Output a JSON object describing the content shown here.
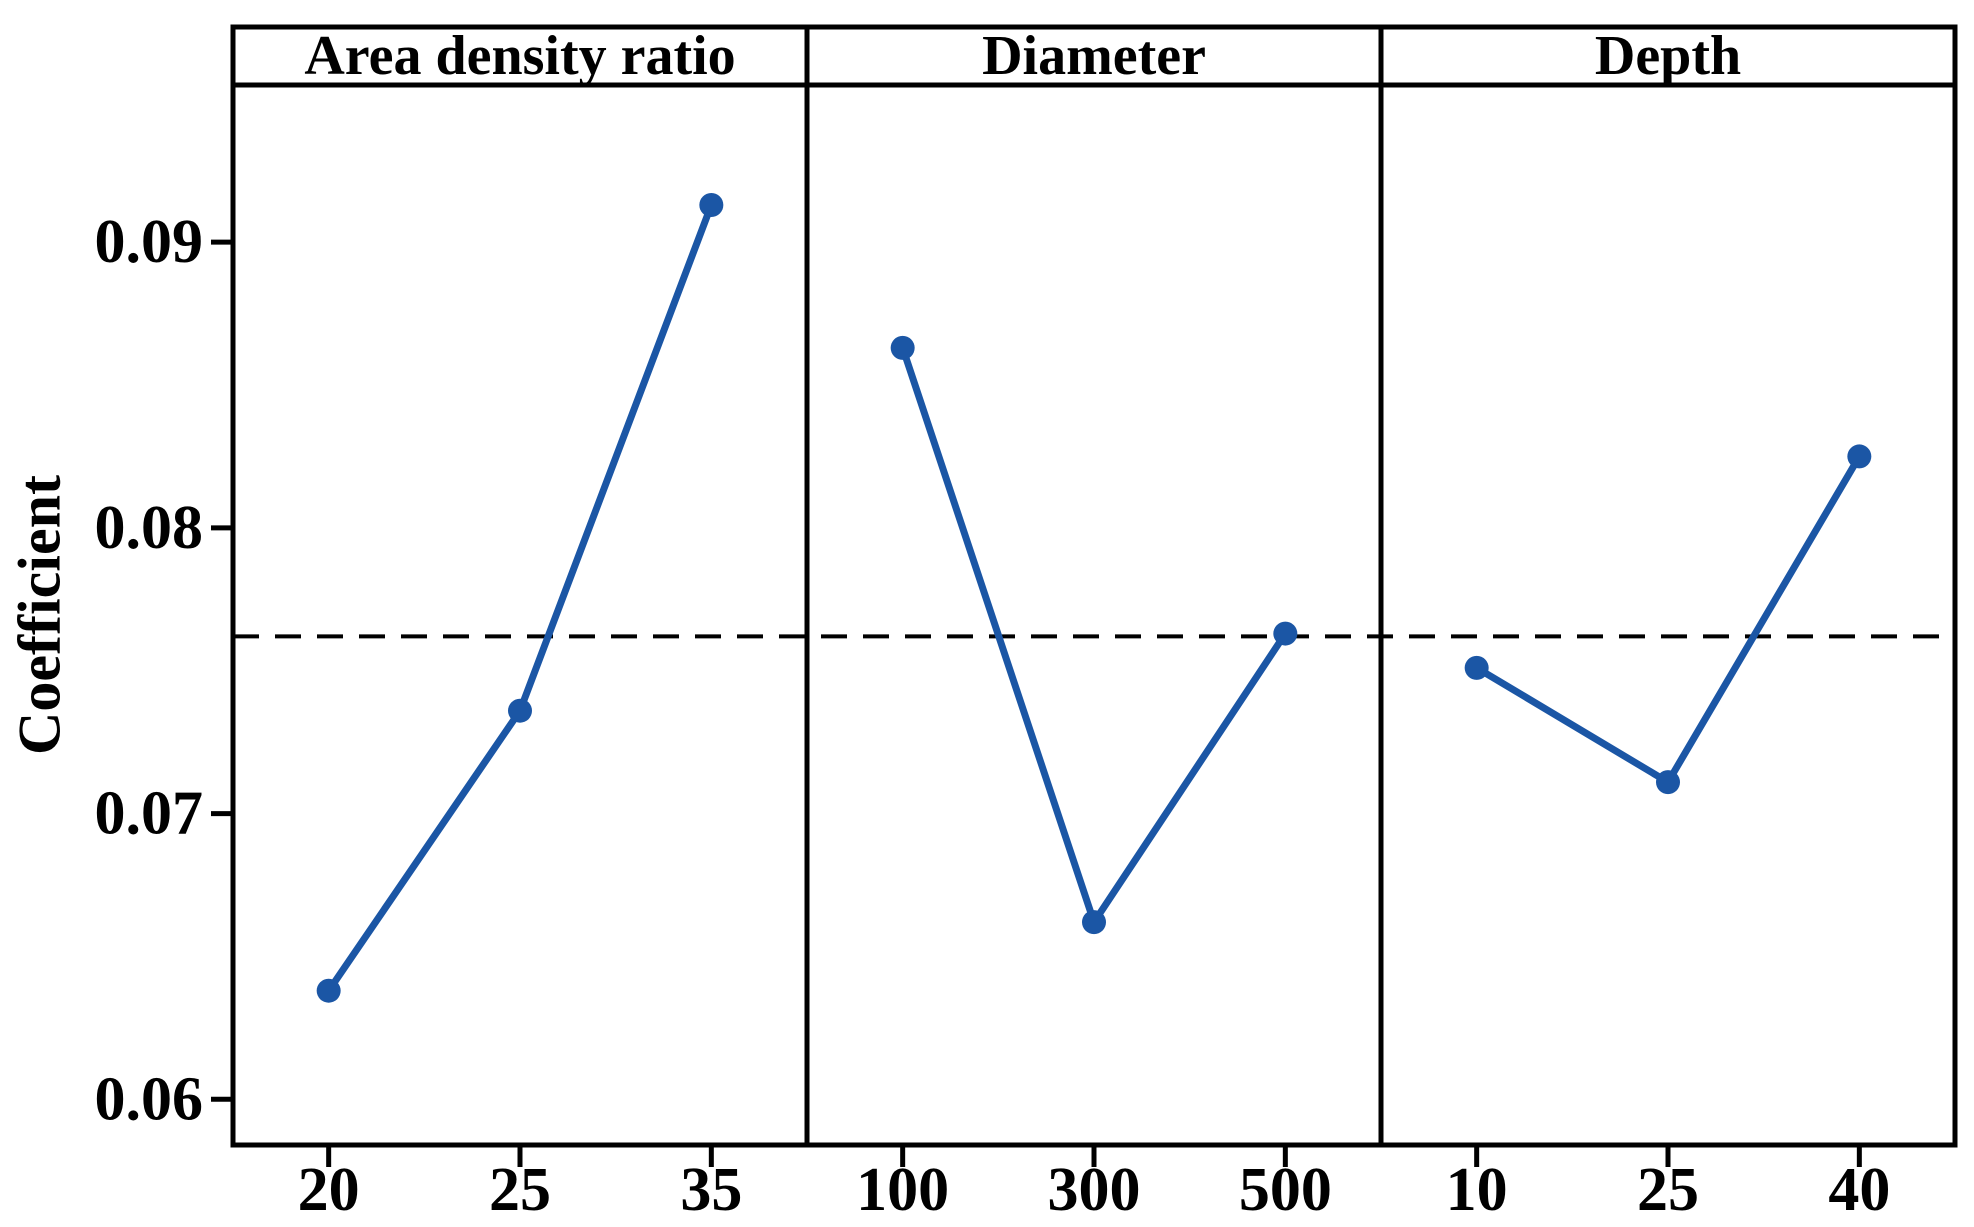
{
  "chart_data": {
    "type": "line",
    "subtype": "main-effects-plot",
    "ylabel": "Coefficient",
    "ylim": [
      0.0584,
      0.0955
    ],
    "yticks": [
      0.06,
      0.07,
      0.08,
      0.09
    ],
    "ytick_labels": [
      "0.06",
      "0.07",
      "0.08",
      "0.09"
    ],
    "reference_line": 0.0762,
    "grid": false,
    "legend": null,
    "panels": [
      {
        "label": "Area density ratio",
        "categories": [
          "20",
          "25",
          "35"
        ],
        "values": [
          0.0638,
          0.0736,
          0.0913
        ]
      },
      {
        "label": "Diameter",
        "categories": [
          "100",
          "300",
          "500"
        ],
        "values": [
          0.0863,
          0.0662,
          0.0763
        ]
      },
      {
        "label": "Depth",
        "categories": [
          "10",
          "25",
          "40"
        ],
        "values": [
          0.0751,
          0.0711,
          0.0825
        ]
      }
    ],
    "colors": {
      "series": "#1b56a5",
      "frame": "#000000",
      "reference": "#000000",
      "text": "#000000",
      "background": "#ffffff"
    }
  }
}
